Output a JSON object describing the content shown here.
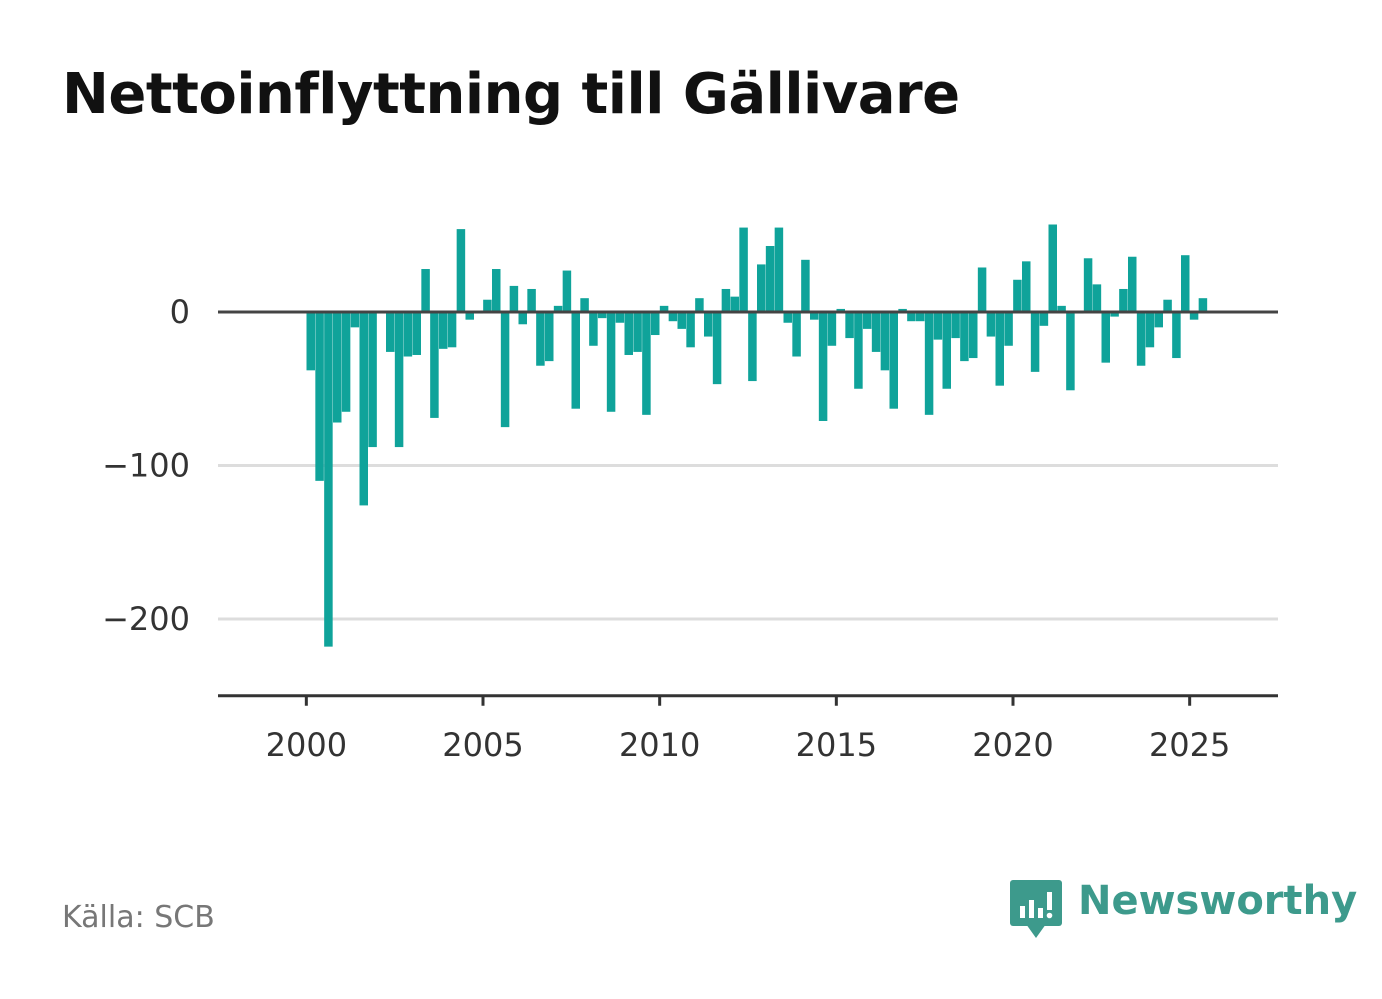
{
  "title": "Nettoinflyttning till Gällivare",
  "source": "Källa: SCB",
  "brand": {
    "name": "Newsworthy",
    "icon": "newsworthy-logo-icon",
    "color": "#3d9a8c"
  },
  "chart_data": {
    "type": "bar",
    "title": "Nettoinflyttning till Gällivare",
    "xlabel": "",
    "ylabel": "",
    "bar_color": "#0fa39a",
    "grid": true,
    "xlim": [
      1997.5,
      2027.5
    ],
    "ylim": [
      -250,
      75
    ],
    "x_ticks": [
      2000,
      2005,
      2010,
      2015,
      2020,
      2025
    ],
    "x_tick_labels": [
      "2000",
      "2005",
      "2010",
      "2015",
      "2020",
      "2025"
    ],
    "y_ticks": [
      0,
      -100,
      -200
    ],
    "y_tick_labels": [
      "0",
      "−100",
      "−200"
    ],
    "x": [
      2000.125,
      2000.375,
      2000.625,
      2000.875,
      2001.125,
      2001.375,
      2001.625,
      2001.875,
      2002.125,
      2002.375,
      2002.625,
      2002.875,
      2003.125,
      2003.375,
      2003.625,
      2003.875,
      2004.125,
      2004.375,
      2004.625,
      2004.875,
      2005.125,
      2005.375,
      2005.625,
      2005.875,
      2006.125,
      2006.375,
      2006.625,
      2006.875,
      2007.125,
      2007.375,
      2007.625,
      2007.875,
      2008.125,
      2008.375,
      2008.625,
      2008.875,
      2009.125,
      2009.375,
      2009.625,
      2009.875,
      2010.125,
      2010.375,
      2010.625,
      2010.875,
      2011.125,
      2011.375,
      2011.625,
      2011.875,
      2012.125,
      2012.375,
      2012.625,
      2012.875,
      2013.125,
      2013.375,
      2013.625,
      2013.875,
      2014.125,
      2014.375,
      2014.625,
      2014.875,
      2015.125,
      2015.375,
      2015.625,
      2015.875,
      2016.125,
      2016.375,
      2016.625,
      2016.875,
      2017.125,
      2017.375,
      2017.625,
      2017.875,
      2018.125,
      2018.375,
      2018.625,
      2018.875,
      2019.125,
      2019.375,
      2019.625,
      2019.875,
      2020.125,
      2020.375,
      2020.625,
      2020.875,
      2021.125,
      2021.375,
      2021.625,
      2021.875,
      2022.125,
      2022.375,
      2022.625,
      2022.875,
      2023.125,
      2023.375,
      2023.625,
      2023.875,
      2024.125,
      2024.375,
      2024.625,
      2024.875,
      2025.125,
      2025.375
    ],
    "values": [
      -38,
      -110,
      -218,
      -72,
      -65,
      -10,
      -126,
      -88,
      -1,
      -26,
      -88,
      -29,
      -28,
      28,
      -69,
      -24,
      -23,
      54,
      -5,
      -1,
      8,
      28,
      -75,
      17,
      -8,
      15,
      -35,
      -32,
      4,
      27,
      -63,
      9,
      -22,
      -4,
      -65,
      -7,
      -28,
      -26,
      -67,
      -15,
      4,
      -6,
      -11,
      -23,
      9,
      -16,
      -47,
      15,
      10,
      55,
      -45,
      31,
      43,
      55,
      -7,
      -29,
      34,
      -5,
      -71,
      -22,
      2,
      -17,
      -50,
      -11,
      -26,
      -38,
      -63,
      2,
      -6,
      -6,
      -67,
      -18,
      -50,
      -17,
      -32,
      -30,
      29,
      -16,
      -48,
      -22,
      21,
      33,
      -39,
      -9,
      57,
      4,
      -51,
      -1,
      35,
      18,
      -33,
      -3,
      15,
      36,
      -35,
      -23,
      -10,
      8,
      -30,
      37,
      -5,
      9
    ]
  }
}
